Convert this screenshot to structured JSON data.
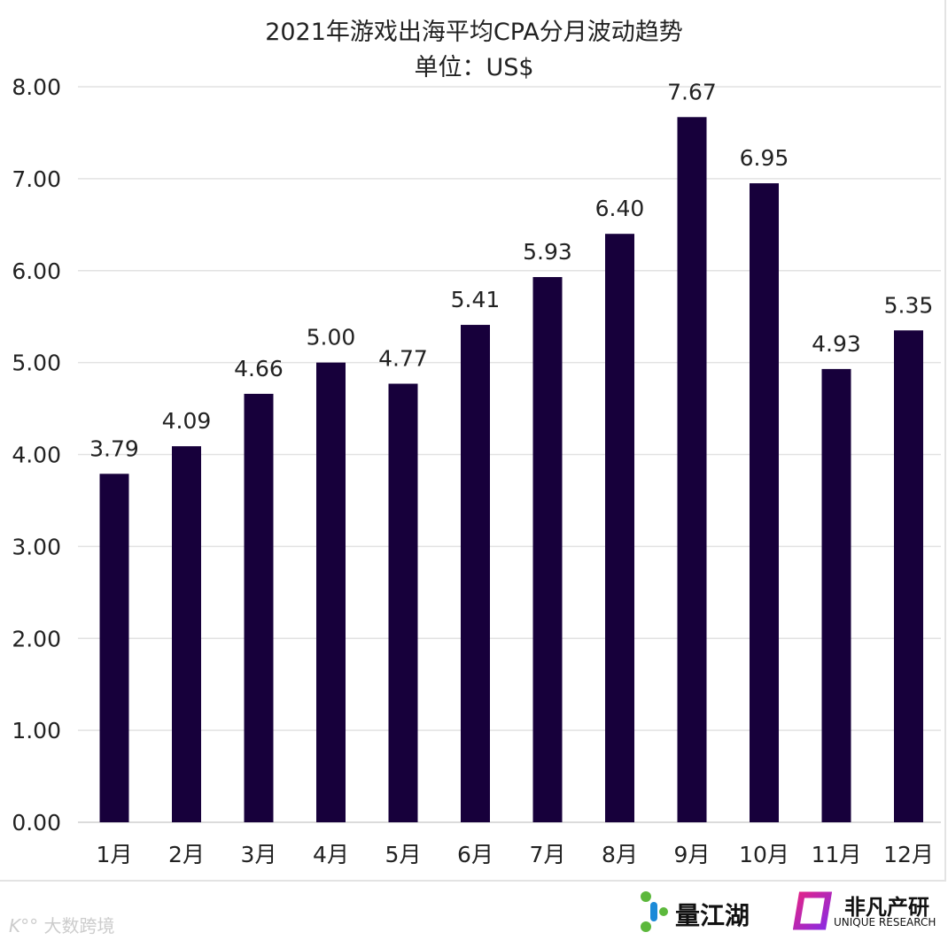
{
  "chart_data": {
    "type": "bar",
    "title": "2021年游戏出海平均CPA分月波动趋势",
    "subtitle": "单位：US$",
    "categories": [
      "1月",
      "2月",
      "3月",
      "4月",
      "5月",
      "6月",
      "7月",
      "8月",
      "9月",
      "10月",
      "11月",
      "12月"
    ],
    "values": [
      3.79,
      4.09,
      4.66,
      5.0,
      4.77,
      5.41,
      5.93,
      6.4,
      7.67,
      6.95,
      4.93,
      5.35
    ],
    "data_labels": [
      "3.79",
      "4.09",
      "4.66",
      "5.00",
      "4.77",
      "5.41",
      "5.93",
      "6.40",
      "7.67",
      "6.95",
      "4.93",
      "5.35"
    ],
    "yticks": [
      "0.00",
      "1.00",
      "2.00",
      "3.00",
      "4.00",
      "5.00",
      "6.00",
      "7.00",
      "8.00"
    ],
    "ylim": [
      0,
      8
    ],
    "grid": true,
    "bar_color": "#17003b"
  },
  "footer": {
    "logo_left": "大数跨境",
    "logo_mid": "量江湖",
    "logo_right": "非凡产研",
    "logo_right_sub": "UNIQUE RESEARCH"
  }
}
